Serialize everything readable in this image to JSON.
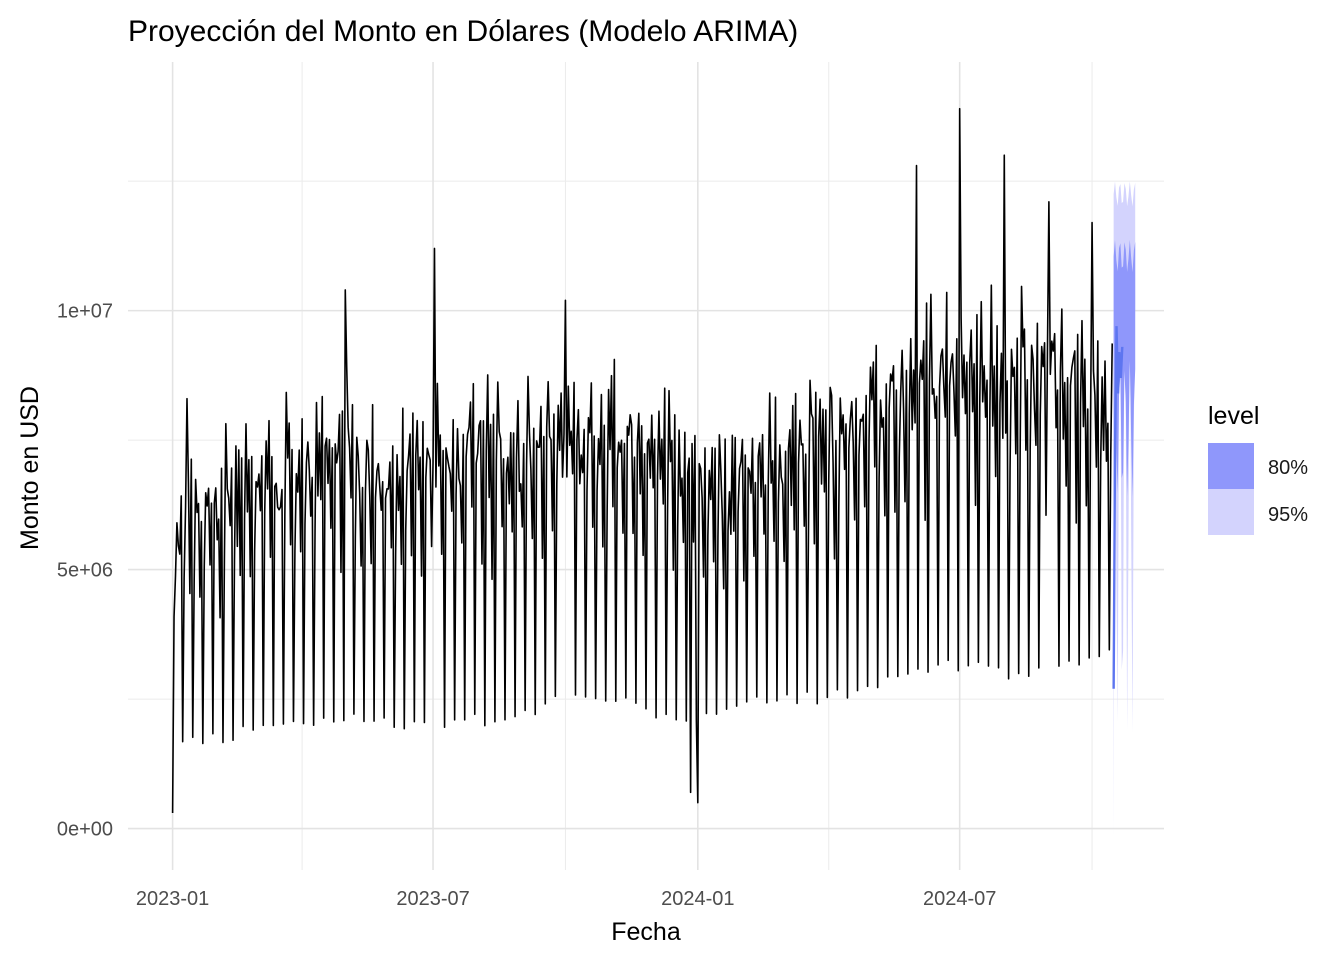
{
  "chart_data": {
    "type": "line",
    "title": "Proyección del Monto en Dólares (Modelo ARIMA)",
    "xlabel": "Fecha",
    "ylabel": "Monto en USD",
    "xlim": [
      "2022-12-01",
      "2024-11-20"
    ],
    "ylim": [
      -800000,
      14800000
    ],
    "x_ticks": [
      {
        "value": "2023-01-01",
        "label": "2023-01"
      },
      {
        "value": "2023-07-01",
        "label": "2023-07"
      },
      {
        "value": "2024-01-01",
        "label": "2024-01"
      },
      {
        "value": "2024-07-01",
        "label": "2024-07"
      }
    ],
    "x_minor_ticks": [
      "2023-04-01",
      "2023-10-01",
      "2024-04-01",
      "2024-10-01"
    ],
    "y_ticks": [
      {
        "value": 0,
        "label": "0e+00"
      },
      {
        "value": 5000000,
        "label": "5e+06"
      },
      {
        "value": 10000000,
        "label": "1e+07"
      }
    ],
    "y_minor_ticks": [
      2500000,
      7500000,
      12500000
    ],
    "grid": true,
    "legend": {
      "title": "level",
      "position": "right",
      "entries": [
        {
          "label": "80%",
          "color": "#8f97fb"
        },
        {
          "label": "95%",
          "color": "#d3d3fd"
        }
      ]
    },
    "series": [
      {
        "role": "observed",
        "color": "#000000",
        "start": "2023-01-01",
        "end": "2024-10-15",
        "weekly_pattern": "weekly cycle: sharp drop to weekly low each week, recovering to weekly high",
        "trend_points": [
          {
            "x": "2023-01-01",
            "low": 300000,
            "high": 4600000
          },
          {
            "x": "2023-01-05",
            "low": 1400000,
            "high": 6900000
          },
          {
            "x": "2023-02-01",
            "low": 1300000,
            "high": 7400000
          },
          {
            "x": "2023-03-01",
            "low": 1500000,
            "high": 8000000
          },
          {
            "x": "2023-04-01",
            "low": 1500000,
            "high": 8100000
          },
          {
            "x": "2023-05-01",
            "low": 1700000,
            "high": 8600000
          },
          {
            "x": "2023-06-01",
            "low": 1600000,
            "high": 7800000
          },
          {
            "x": "2023-07-01",
            "low": 1600000,
            "high": 8600000
          },
          {
            "x": "2023-08-01",
            "low": 1600000,
            "high": 8500000
          },
          {
            "x": "2023-09-01",
            "low": 1700000,
            "high": 8300000
          },
          {
            "x": "2023-10-01",
            "low": 2200000,
            "high": 9200000
          },
          {
            "x": "2023-11-01",
            "low": 2000000,
            "high": 9000000
          },
          {
            "x": "2023-12-01",
            "low": 1700000,
            "high": 8800000
          },
          {
            "x": "2024-01-01",
            "low": 1700000,
            "high": 7500000
          },
          {
            "x": "2024-02-01",
            "low": 2000000,
            "high": 7800000
          },
          {
            "x": "2024-03-01",
            "low": 2100000,
            "high": 8400000
          },
          {
            "x": "2024-04-01",
            "low": 2000000,
            "high": 8900000
          },
          {
            "x": "2024-05-01",
            "low": 2300000,
            "high": 9400000
          },
          {
            "x": "2024-06-01",
            "low": 2600000,
            "high": 10200000
          },
          {
            "x": "2024-07-01",
            "low": 2600000,
            "high": 10300000
          },
          {
            "x": "2024-08-01",
            "low": 2500000,
            "high": 10100000
          },
          {
            "x": "2024-09-01",
            "low": 2500000,
            "high": 10000000
          },
          {
            "x": "2024-10-15",
            "low": 2900000,
            "high": 9300000
          }
        ],
        "notable_points": [
          {
            "x": "2023-01-01",
            "y": 300000
          },
          {
            "x": "2023-01-11",
            "y": 8300000
          },
          {
            "x": "2023-05-01",
            "y": 10400000
          },
          {
            "x": "2023-07-02",
            "y": 11200000
          },
          {
            "x": "2023-10-01",
            "y": 10200000
          },
          {
            "x": "2023-12-27",
            "y": 700000
          },
          {
            "x": "2024-01-01",
            "y": 500000
          },
          {
            "x": "2024-06-01",
            "y": 12800000
          },
          {
            "x": "2024-07-01",
            "y": 13900000
          },
          {
            "x": "2024-08-01",
            "y": 13000000
          },
          {
            "x": "2024-09-01",
            "y": 12100000
          },
          {
            "x": "2024-10-01",
            "y": 11700000
          }
        ]
      },
      {
        "role": "forecast",
        "color": "#5d75f0",
        "start": "2024-10-16",
        "end": "2024-10-31",
        "points": [
          {
            "x": "2024-10-16",
            "y": 2700000
          },
          {
            "x": "2024-10-17",
            "y": 7400000
          },
          {
            "x": "2024-10-18",
            "y": 9700000
          },
          {
            "x": "2024-10-19",
            "y": 8400000
          },
          {
            "x": "2024-10-20",
            "y": 9200000
          },
          {
            "x": "2024-10-21",
            "y": 8700000
          },
          {
            "x": "2024-10-22",
            "y": 9300000
          }
        ]
      }
    ],
    "forecast_intervals": {
      "level_80": {
        "low": [
          5800000,
          9600000
        ],
        "high": [
          10600000,
          11500000
        ]
      },
      "level_95": {
        "low": [
          -200000,
          12600000
        ],
        "high": [
          11900000,
          12600000
        ]
      }
    }
  }
}
